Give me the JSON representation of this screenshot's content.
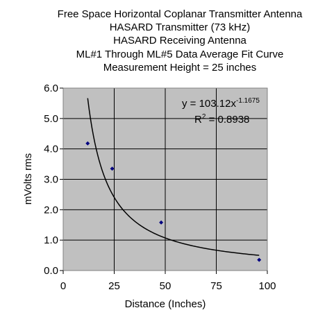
{
  "chart_data": {
    "type": "scatter",
    "title_lines": [
      "Free Space Horizontal Coplanar Transmitter Antenna",
      "HASARD Transmitter (73 kHz)",
      "HASARD Receiving Antenna",
      "ML#1 Through ML#5 Data Average Fit Curve",
      "Measurement Height = 25 inches"
    ],
    "xlabel": "Distance (Inches)",
    "ylabel": "mVolts rms",
    "xlim": [
      0,
      100
    ],
    "ylim": [
      0,
      6
    ],
    "x_ticks": [
      "0",
      "25",
      "50",
      "75",
      "100"
    ],
    "y_ticks": [
      "0.0",
      "1.0",
      "2.0",
      "3.0",
      "4.0",
      "5.0",
      "6.0"
    ],
    "grid": true,
    "plot_background": "#c0c0c0",
    "point_color": "#000080",
    "points": {
      "x": [
        12,
        24,
        48,
        96
      ],
      "y": [
        4.18,
        3.35,
        1.58,
        0.35
      ]
    },
    "fit": {
      "type": "power",
      "a": 103.12,
      "b": -1.1675,
      "x_range": [
        12,
        96
      ],
      "equation_prefix": "y = 103.12x",
      "equation_exponent": "-1.1675",
      "r2_prefix": "R",
      "r2_exponent": "2",
      "r2_suffix": " = 0.8938"
    }
  }
}
